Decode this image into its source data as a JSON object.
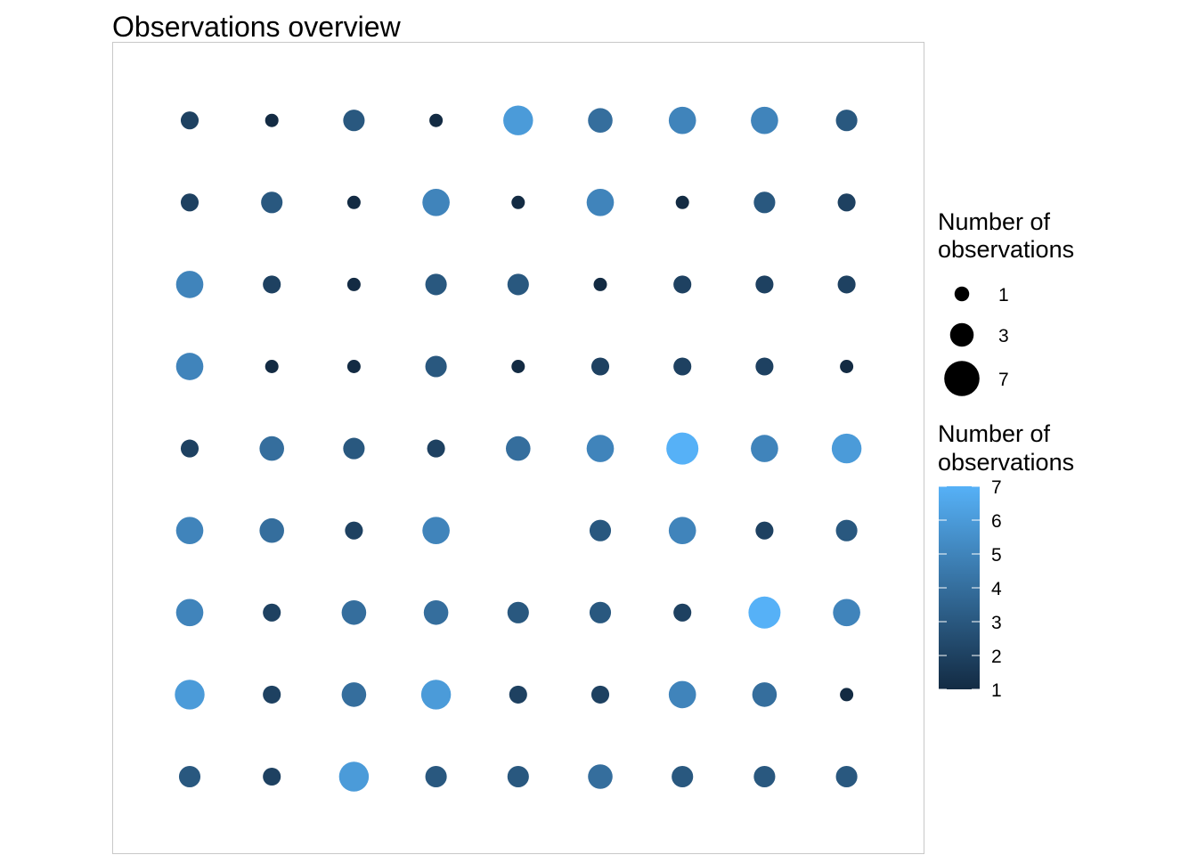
{
  "chart_data": {
    "type": "scatter",
    "title": "Observations overview",
    "xlabel": "",
    "ylabel": "",
    "grid": false,
    "x": [
      1,
      2,
      3,
      4,
      5,
      6,
      7,
      8,
      9
    ],
    "y": [
      1,
      2,
      3,
      4,
      5,
      6,
      7,
      8,
      9
    ],
    "counts": [
      [
        3,
        2,
        6,
        3,
        3,
        4,
        3,
        3,
        3
      ],
      [
        6,
        2,
        4,
        6,
        2,
        2,
        5,
        4,
        1
      ],
      [
        5,
        2,
        4,
        4,
        3,
        3,
        2,
        7,
        5
      ],
      [
        5,
        4,
        2,
        5,
        null,
        3,
        5,
        2,
        3
      ],
      [
        2,
        4,
        3,
        2,
        4,
        5,
        7,
        5,
        6
      ],
      [
        5,
        1,
        1,
        3,
        1,
        2,
        2,
        2,
        1
      ],
      [
        5,
        2,
        1,
        3,
        3,
        1,
        2,
        2,
        2
      ],
      [
        2,
        3,
        1,
        5,
        1,
        5,
        1,
        3,
        2
      ],
      [
        2,
        1,
        3,
        1,
        6,
        4,
        5,
        5,
        3
      ]
    ],
    "legend_position": "right",
    "size_legend": {
      "title": "Number of observations",
      "title_line1": "Number of",
      "title_line2": "observations",
      "breaks": [
        1,
        3,
        7
      ],
      "labels": [
        "1",
        "3",
        "7"
      ]
    },
    "color_legend": {
      "title": "Number of observations",
      "title_line1": "Number of",
      "title_line2": "observations",
      "min": 1,
      "max": 7,
      "breaks": [
        1,
        2,
        3,
        4,
        5,
        6,
        7
      ],
      "labels": [
        "1",
        "2",
        "3",
        "4",
        "5",
        "6",
        "7"
      ],
      "low_color": "#132B43",
      "high_color": "#56B1F7"
    }
  }
}
